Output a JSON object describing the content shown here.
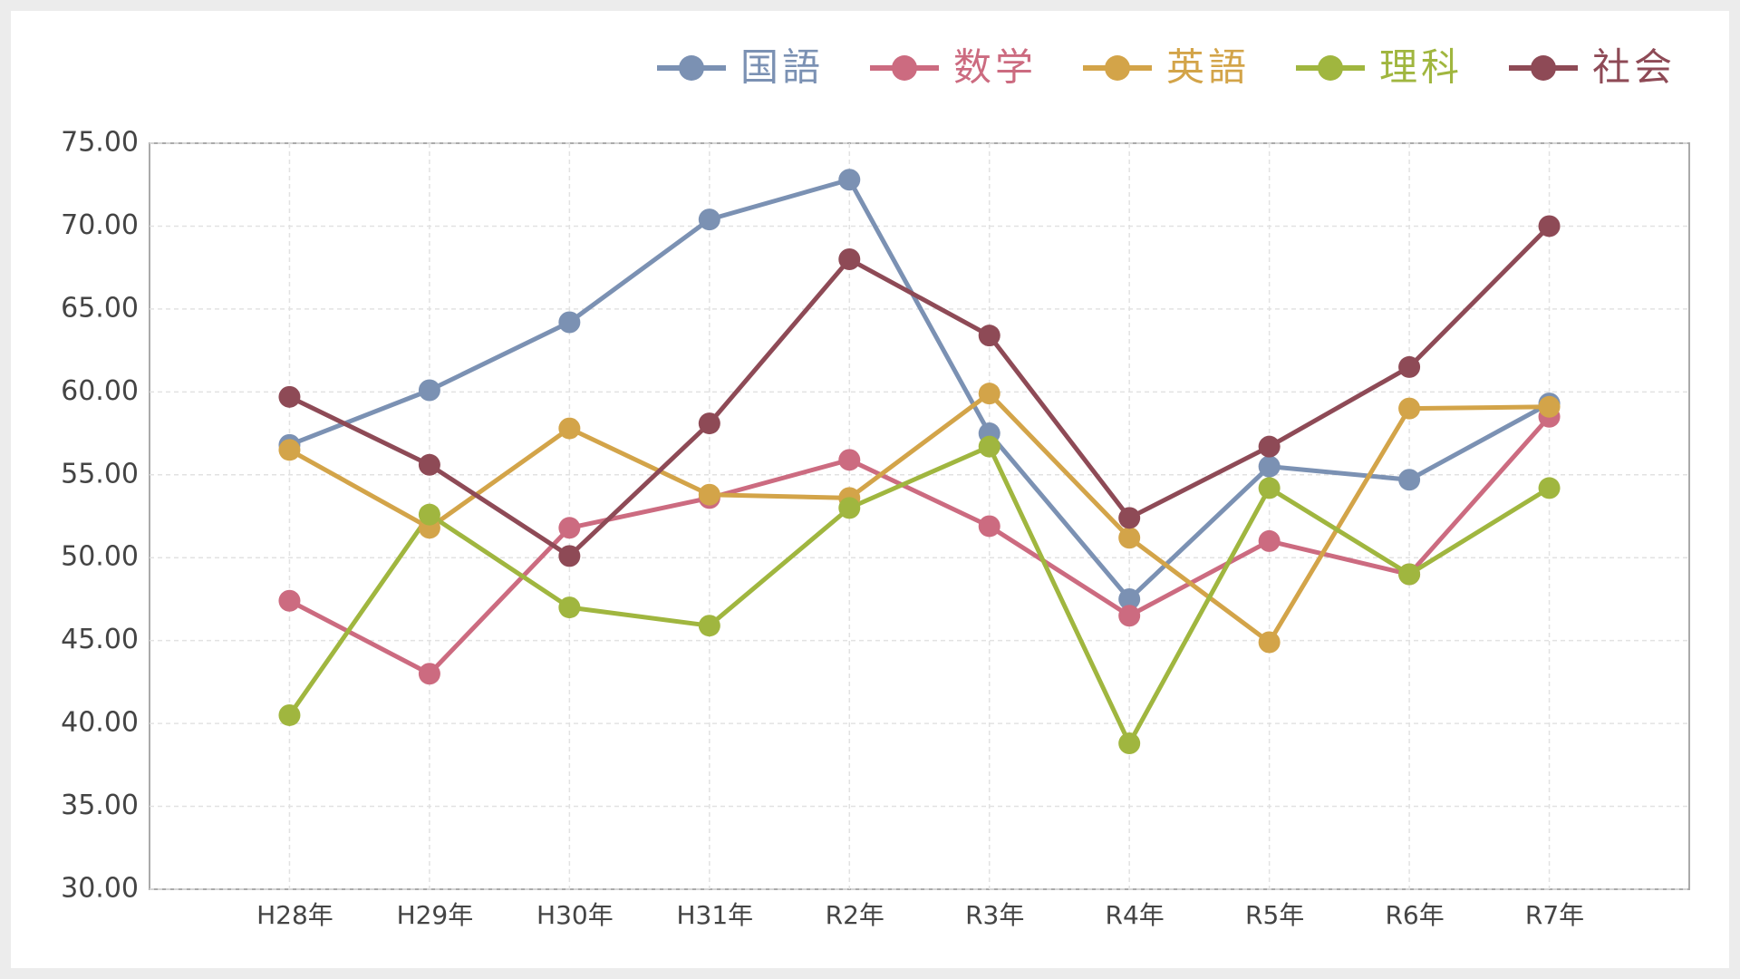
{
  "chart_data": {
    "type": "line",
    "categories": [
      "H28年",
      "H29年",
      "H30年",
      "H31年",
      "R2年",
      "R3年",
      "R4年",
      "R5年",
      "R6年",
      "R7年"
    ],
    "series": [
      {
        "name": "国語",
        "color": "#7b91b3",
        "values": [
          56.8,
          60.1,
          64.2,
          70.4,
          72.8,
          57.5,
          47.5,
          55.5,
          54.7,
          59.3
        ]
      },
      {
        "name": "数学",
        "color": "#cc6b80",
        "values": [
          47.4,
          43.0,
          51.8,
          53.6,
          55.9,
          51.9,
          46.5,
          51.0,
          49.0,
          58.5
        ]
      },
      {
        "name": "英語",
        "color": "#d3a449",
        "values": [
          56.5,
          51.8,
          57.8,
          53.8,
          53.6,
          59.9,
          51.2,
          44.9,
          59.0,
          59.1
        ]
      },
      {
        "name": "理科",
        "color": "#a0b63f",
        "values": [
          40.5,
          52.6,
          47.0,
          45.9,
          53.0,
          56.7,
          38.8,
          54.2,
          49.0,
          54.2
        ]
      },
      {
        "name": "社会",
        "color": "#8e4a56",
        "values": [
          59.7,
          55.6,
          50.1,
          58.1,
          68.0,
          63.4,
          52.4,
          56.7,
          61.5,
          70.0
        ]
      }
    ],
    "ylim": [
      30,
      75
    ],
    "yticks": [
      {
        "value": 30,
        "label": "30.00"
      },
      {
        "value": 35,
        "label": "35.00"
      },
      {
        "value": 40,
        "label": "40.00"
      },
      {
        "value": 45,
        "label": "45.00"
      },
      {
        "value": 50,
        "label": "50.00"
      },
      {
        "value": 55,
        "label": "55.00"
      },
      {
        "value": 60,
        "label": "60.00"
      },
      {
        "value": 65,
        "label": "65.00"
      },
      {
        "value": 70,
        "label": "70.00"
      },
      {
        "value": 75,
        "label": "75.00"
      }
    ],
    "grid": true,
    "legend": "top-right"
  }
}
